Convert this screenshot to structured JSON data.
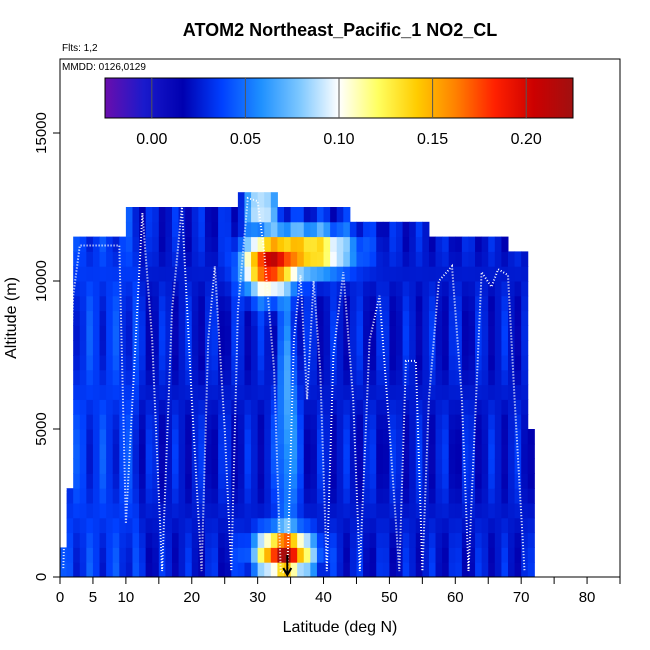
{
  "chart_data": {
    "type": "heatmap",
    "title": "ATOM2 Northeast_Pacific_1 NO2_CL",
    "annotations": [
      "Flts: 1,2",
      "MMDD: 0126,0129"
    ],
    "xlabel": "Latitude (deg N)",
    "ylabel": "Altitude (m)",
    "xlim": [
      0,
      85
    ],
    "ylim": [
      0,
      17500
    ],
    "x_ticks": [
      0,
      5,
      10,
      20,
      30,
      40,
      50,
      60,
      70,
      80
    ],
    "y_ticks": [
      0,
      5000,
      10000,
      15000
    ],
    "y_tick_labels": [
      "0",
      "5000",
      "10000",
      "15000"
    ],
    "colorbar": {
      "range": [
        -0.025,
        0.225
      ],
      "ticks": [
        0.0,
        0.05,
        0.1,
        0.15,
        0.2
      ],
      "tick_labels": [
        "0.00",
        "0.05",
        "0.10",
        "0.15",
        "0.20"
      ],
      "colors": [
        "#6a0dad",
        "#1a1acc",
        "#0000b0",
        "#0040ff",
        "#1e90ff",
        "#7ec8ff",
        "#ffffff",
        "#ffff60",
        "#ffcc00",
        "#ff8000",
        "#ff2000",
        "#cc0000",
        "#a01010"
      ]
    },
    "arrow_marker_lat": 34.5,
    "background_value": 0.025,
    "hotspots": [
      {
        "lat": 31.5,
        "alt": 10500,
        "value": 0.18,
        "lat_sigma": 3.5,
        "alt_sigma": 900
      },
      {
        "lat": 38.0,
        "alt": 11000,
        "value": 0.15,
        "lat_sigma": 6.0,
        "alt_sigma": 700
      },
      {
        "lat": 34.0,
        "alt": 800,
        "value": 0.21,
        "lat_sigma": 4.0,
        "alt_sigma": 700
      },
      {
        "lat": 30.5,
        "alt": 12500,
        "value": 0.12,
        "lat_sigma": 2.0,
        "alt_sigma": 500
      },
      {
        "lat": 34.5,
        "alt": 5000,
        "value": 0.07,
        "lat_sigma": 1.5,
        "alt_sigma": 4000
      }
    ],
    "flight_track": [
      [
        0.5,
        300
      ],
      [
        1.0,
        4000
      ],
      [
        2.0,
        9500
      ],
      [
        3.0,
        11200
      ],
      [
        9.0,
        11200
      ],
      [
        10.0,
        1800
      ],
      [
        11.0,
        6000
      ],
      [
        12.5,
        12300
      ],
      [
        14.0,
        8000
      ],
      [
        15.5,
        200
      ],
      [
        17.0,
        9000
      ],
      [
        18.5,
        12500
      ],
      [
        20.0,
        6000
      ],
      [
        21.5,
        200
      ],
      [
        22.5,
        8000
      ],
      [
        23.5,
        10500
      ],
      [
        25.0,
        5000
      ],
      [
        26.0,
        200
      ],
      [
        27.0,
        9000
      ],
      [
        28.5,
        12800
      ],
      [
        30.0,
        12700
      ],
      [
        31.0,
        11000
      ],
      [
        32.5,
        7000
      ],
      [
        33.5,
        200
      ],
      [
        34.5,
        100
      ],
      [
        35.5,
        8000
      ],
      [
        36.5,
        10200
      ],
      [
        37.5,
        6000
      ],
      [
        38.5,
        10000
      ],
      [
        39.5,
        7000
      ],
      [
        40.5,
        200
      ],
      [
        41.5,
        7500
      ],
      [
        43.0,
        10300
      ],
      [
        44.5,
        6000
      ],
      [
        45.5,
        200
      ],
      [
        47.0,
        8000
      ],
      [
        48.5,
        9500
      ],
      [
        50.0,
        5000
      ],
      [
        51.5,
        200
      ],
      [
        52.5,
        7300
      ],
      [
        54.0,
        7300
      ],
      [
        55.0,
        200
      ],
      [
        56.0,
        6000
      ],
      [
        57.5,
        10000
      ],
      [
        59.5,
        10500
      ],
      [
        61.0,
        6000
      ],
      [
        62.0,
        200
      ],
      [
        64.0,
        10300
      ],
      [
        65.5,
        9800
      ],
      [
        66.5,
        10400
      ],
      [
        68.0,
        10200
      ],
      [
        69.0,
        6000
      ],
      [
        70.5,
        200
      ]
    ]
  }
}
